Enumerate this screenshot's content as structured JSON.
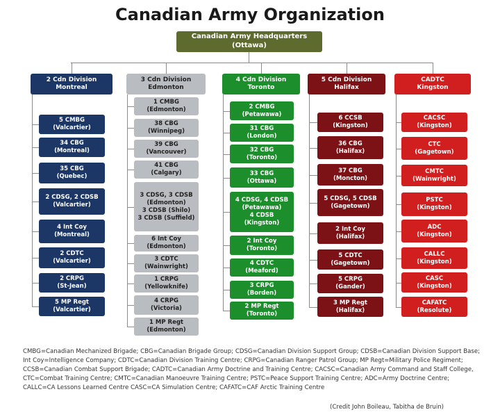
{
  "title": "Canadian Army Organization",
  "hq": {
    "line1": "Canadian Army Headquarters",
    "line2": "(Ottawa)"
  },
  "colors": {
    "navy": "#1c3766",
    "grey": "#b9bcc0",
    "green": "#1d8e2c",
    "maroon": "#7d1216",
    "red": "#d11f1f",
    "olive": "#5d6b2f"
  },
  "columns": [
    {
      "color": "navy",
      "head": [
        "2 Cdn Division",
        "Montreal"
      ],
      "units": [
        [
          "5 CMBG",
          "(Valcartier)"
        ],
        [
          "34 CBG",
          "(Montreal)"
        ],
        [
          "35 CBG",
          "(Quebec)"
        ],
        [
          "2 CDSG, 2 CDSB",
          "(Valcartier)"
        ],
        [
          "4 Int Coy",
          "(Montreal)"
        ],
        [
          "2 CDTC",
          "(Valcartier)"
        ],
        [
          "2 CRPG",
          "(St-Jean)"
        ],
        [
          "5 MP Regt",
          "(Valcartier)"
        ]
      ]
    },
    {
      "color": "grey",
      "head": [
        "3 Cdn Division",
        "Edmonton"
      ],
      "units": [
        [
          "1 CMBG",
          "(Edmonton)"
        ],
        [
          "38 CBG",
          "(Winnipeg)"
        ],
        [
          "39 CBG",
          "(Vancouver)"
        ],
        [
          "41 CBG",
          "(Calgary)"
        ],
        [
          "3 CDSG, 3 CDSB",
          "(Edmonton)",
          "3 CDSB (Shilo)",
          "3 CDSB (Suffield)"
        ],
        [
          "6 Int Coy",
          "(Edmonton)"
        ],
        [
          "3 CDTC",
          "(Wainwright)"
        ],
        [
          "1 CRPG",
          "(Yellowknife)"
        ],
        [
          "4 CRPG",
          "(Victoria)"
        ],
        [
          "1 MP Regt",
          "(Edmonton)"
        ]
      ]
    },
    {
      "color": "green",
      "head": [
        "4 Cdn Division",
        "Toronto"
      ],
      "units": [
        [
          "2 CMBG",
          "(Petawawa)"
        ],
        [
          "31 CBG",
          "(London)"
        ],
        [
          "32 CBG",
          "(Toronto)"
        ],
        [
          "33 CBG",
          "(Ottawa)"
        ],
        [
          "4 CDSG, 4 CDSB",
          "(Petawawa)",
          "4 CDSB",
          "(Kingston)"
        ],
        [
          "2 Int Coy",
          "(Toronto)"
        ],
        [
          "4 CDTC",
          "(Meaford)"
        ],
        [
          "3 CRPG",
          "(Borden)"
        ],
        [
          "2 MP Regt",
          "(Toronto)"
        ]
      ]
    },
    {
      "color": "maroon",
      "head": [
        "5 Cdn Division",
        "Halifax"
      ],
      "units": [
        [
          "6 CCSB",
          "(Kingston)"
        ],
        [
          "36 CBG",
          "(Halifax)"
        ],
        [
          "37 CBG",
          "(Moncton)"
        ],
        [
          "5 CDSG, 5 CDSB",
          "(Gagetown)"
        ],
        [
          "2 Int Coy",
          "(Halifax)"
        ],
        [
          "5 CDTC",
          "(Gagetown)"
        ],
        [
          "5 CRPG",
          "(Gander)"
        ],
        [
          "3 MP Regt",
          "(Halifax)"
        ]
      ]
    },
    {
      "color": "red",
      "head": [
        "CADTC",
        "Kingston"
      ],
      "units": [
        [
          "CACSC",
          "(Kingston)"
        ],
        [
          "CTC",
          "(Gagetown)"
        ],
        [
          "CMTC",
          "(Wainwright)"
        ],
        [
          "PSTC",
          "(Kingston)"
        ],
        [
          "ADC",
          "(Kingston)"
        ],
        [
          "CALLC",
          "(Kingston)"
        ],
        [
          "CASC",
          "(Kingston)"
        ],
        [
          "CAFATC",
          "(Resolute)"
        ]
      ]
    }
  ],
  "legend": "CMBG=Canadian Mechanized Brigade; CBG=Canadian Brigade Group; CDSG=Canadian Division Support Group; CDSB=Canadian Division Support Base; Int Coy=Intelligence Company; CDTC=Canadian Division Training Centre; CRPG=Canadian Ranger Patrol Group; MP Regt=Military Police Regiment; CCSB=Canadian Combat Support Brigade; CADTC=Canadian Army Doctrine and Training Centre; CACSC=Canadian Army Command and Staff College, CTC=Combat Training Centre; CMTC=Canadian Manoeuvre Training Centre; PSTC=Peace Support Training Centre; ADC=Army Doctrine Centre; CALLC=CA Lessons Learned Centre CASC=CA Simulation Centre; CAFATC=CAF Arctic Training Centre",
  "credit": "(Credit John Boileau, Tabitha de Bruin)"
}
